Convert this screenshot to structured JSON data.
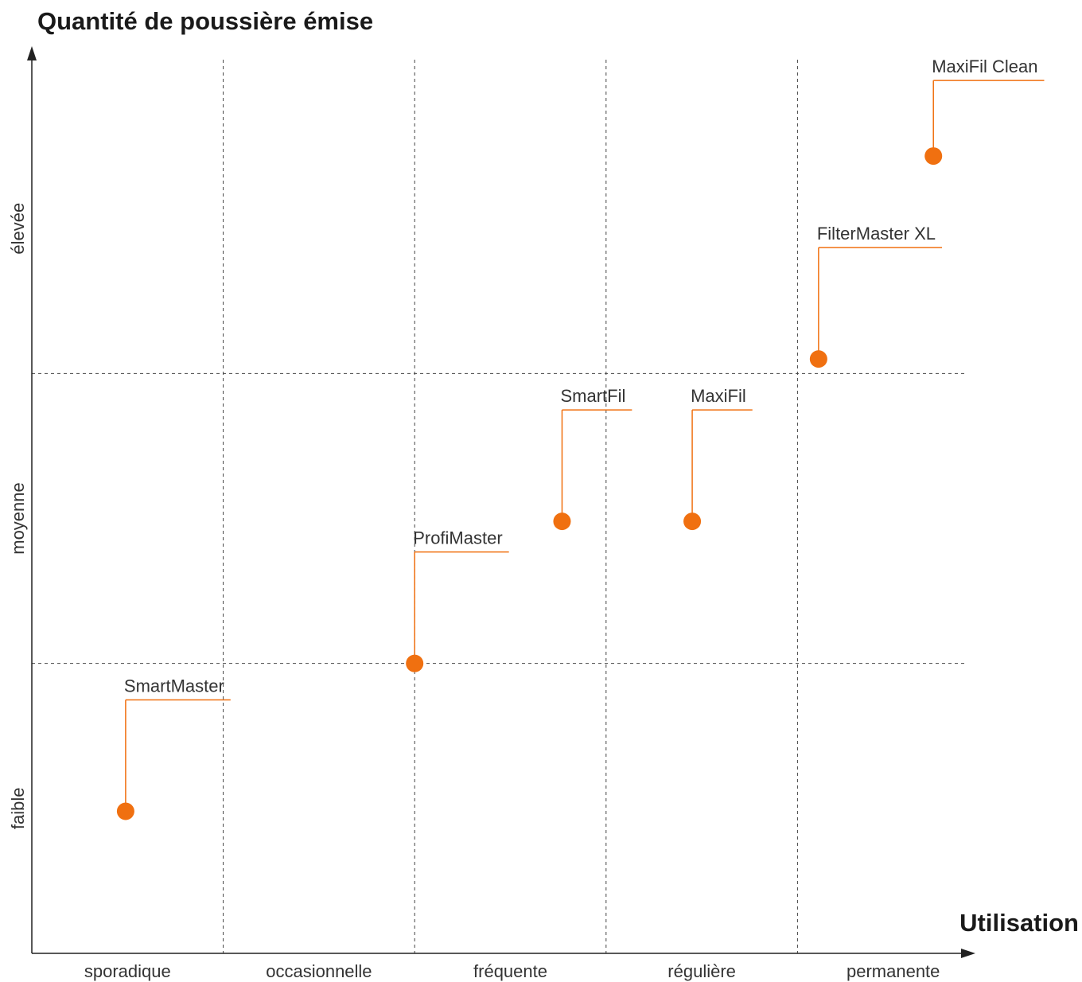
{
  "chart_data": {
    "type": "scatter",
    "title": "Quantité de poussière émise",
    "xlabel": "Utilisation",
    "ylabel": "Quantité de poussière émise",
    "x_categories": [
      "sporadique",
      "occasionnelle",
      "fréquente",
      "régulière",
      "permanente"
    ],
    "y_categories": [
      "faible",
      "moyenne",
      "élevée"
    ],
    "xlim": [
      0,
      5
    ],
    "ylim": [
      0,
      3
    ],
    "grid": true,
    "accent_color": "#f07010",
    "points": [
      {
        "label": "SmartMaster",
        "x": 0.49,
        "y": 0.49
      },
      {
        "label": "ProfiMaster",
        "x": 2.0,
        "y": 1.0
      },
      {
        "label": "SmartFil",
        "x": 2.77,
        "y": 1.49
      },
      {
        "label": "MaxiFil",
        "x": 3.45,
        "y": 1.49
      },
      {
        "label": "FilterMaster XL",
        "x": 4.11,
        "y": 2.05
      },
      {
        "label": "MaxiFil Clean",
        "x": 4.71,
        "y": 2.75
      }
    ]
  }
}
